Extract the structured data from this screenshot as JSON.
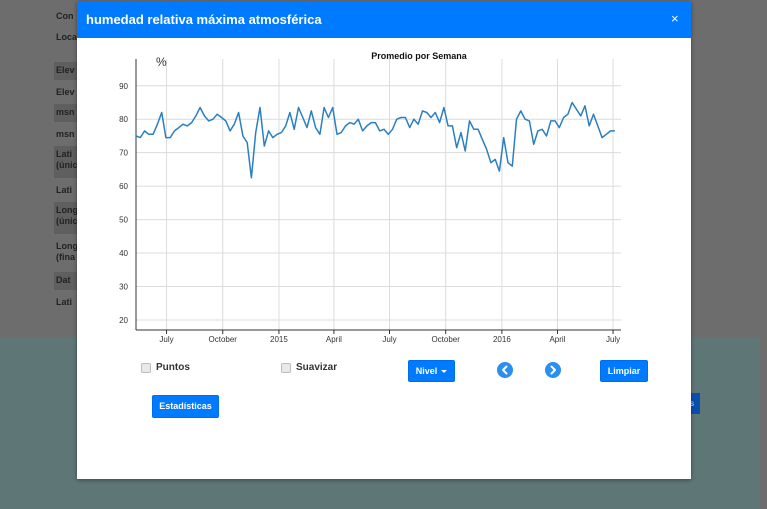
{
  "background": {
    "rows": [
      "Con",
      "Loca",
      "Elev",
      "Elev",
      "msn",
      "msn",
      "Lati (únic",
      "Lati",
      "Long (únic",
      "Long (fina",
      "Dat",
      "Lati"
    ],
    "button_text": "s"
  },
  "modal": {
    "title": "humedad relativa máxima atmosférica",
    "close": "×"
  },
  "controls": {
    "puntos": "Puntos",
    "suavizar": "Suavizar",
    "nivel": "Nivel",
    "limpiar": "Limpiar",
    "estadisticas": "Estadísticas"
  },
  "chart_data": {
    "type": "line",
    "title": "Promedio por Semana",
    "ylabel": "%",
    "ylim": [
      17,
      98
    ],
    "yticks": [
      20,
      30,
      40,
      50,
      60,
      70,
      80,
      90
    ],
    "grid": true,
    "color": "#2a7fc0",
    "xticks": [
      {
        "label": "July",
        "date": "2014-07-01"
      },
      {
        "label": "October",
        "date": "2014-10-01"
      },
      {
        "label": "2015",
        "date": "2015-01-01"
      },
      {
        "label": "April",
        "date": "2015-04-01"
      },
      {
        "label": "July",
        "date": "2015-07-01"
      },
      {
        "label": "October",
        "date": "2015-10-01"
      },
      {
        "label": "2016",
        "date": "2016-01-01"
      },
      {
        "label": "April",
        "date": "2016-04-01"
      },
      {
        "label": "July",
        "date": "2016-07-01"
      }
    ],
    "xrange": [
      "2014-05-12",
      "2016-07-14"
    ],
    "series": [
      {
        "points": [
          [
            "2014-05-12",
            75.0
          ],
          [
            "2014-05-19",
            74.5
          ],
          [
            "2014-05-26",
            76.5
          ],
          [
            "2014-06-02",
            75.5
          ],
          [
            "2014-06-09",
            75.5
          ],
          [
            "2014-06-16",
            78.5
          ],
          [
            "2014-06-23",
            82.0
          ],
          [
            "2014-06-30",
            74.5
          ],
          [
            "2014-07-07",
            74.5
          ],
          [
            "2014-07-14",
            76.5
          ],
          [
            "2014-07-21",
            77.5
          ],
          [
            "2014-07-28",
            78.5
          ],
          [
            "2014-08-04",
            78.0
          ],
          [
            "2014-08-11",
            79.0
          ],
          [
            "2014-08-18",
            81.0
          ],
          [
            "2014-08-25",
            83.5
          ],
          [
            "2014-09-01",
            81.0
          ],
          [
            "2014-09-08",
            79.5
          ],
          [
            "2014-09-15",
            80.0
          ],
          [
            "2014-09-22",
            81.5
          ],
          [
            "2014-09-29",
            80.5
          ],
          [
            "2014-10-06",
            79.5
          ],
          [
            "2014-10-13",
            76.5
          ],
          [
            "2014-10-20",
            78.5
          ],
          [
            "2014-10-27",
            82.0
          ],
          [
            "2014-11-03",
            75.0
          ],
          [
            "2014-11-10",
            73.0
          ],
          [
            "2014-11-17",
            62.5
          ],
          [
            "2014-11-24",
            76.0
          ],
          [
            "2014-12-01",
            83.5
          ],
          [
            "2014-12-08",
            72.0
          ],
          [
            "2014-12-15",
            76.5
          ],
          [
            "2014-12-22",
            74.5
          ],
          [
            "2014-12-29",
            75.5
          ],
          [
            "2015-01-05",
            76.0
          ],
          [
            "2015-01-12",
            78.0
          ],
          [
            "2015-01-19",
            82.0
          ],
          [
            "2015-01-26",
            77.0
          ],
          [
            "2015-02-02",
            83.5
          ],
          [
            "2015-02-09",
            80.5
          ],
          [
            "2015-02-16",
            77.5
          ],
          [
            "2015-02-23",
            82.5
          ],
          [
            "2015-03-02",
            77.5
          ],
          [
            "2015-03-09",
            75.5
          ],
          [
            "2015-03-16",
            83.5
          ],
          [
            "2015-03-23",
            80.5
          ],
          [
            "2015-03-30",
            83.5
          ],
          [
            "2015-04-06",
            75.5
          ],
          [
            "2015-04-13",
            76.0
          ],
          [
            "2015-04-20",
            78.0
          ],
          [
            "2015-04-27",
            79.0
          ],
          [
            "2015-05-04",
            78.5
          ],
          [
            "2015-05-11",
            80.0
          ],
          [
            "2015-05-18",
            76.5
          ],
          [
            "2015-05-25",
            78.0
          ],
          [
            "2015-06-01",
            79.0
          ],
          [
            "2015-06-08",
            79.0
          ],
          [
            "2015-06-15",
            76.5
          ],
          [
            "2015-06-22",
            77.0
          ],
          [
            "2015-06-29",
            75.5
          ],
          [
            "2015-07-06",
            77.0
          ],
          [
            "2015-07-13",
            80.0
          ],
          [
            "2015-07-20",
            80.5
          ],
          [
            "2015-07-27",
            80.5
          ],
          [
            "2015-08-03",
            77.5
          ],
          [
            "2015-08-10",
            80.0
          ],
          [
            "2015-08-17",
            78.5
          ],
          [
            "2015-08-24",
            82.5
          ],
          [
            "2015-08-31",
            82.0
          ],
          [
            "2015-09-07",
            80.5
          ],
          [
            "2015-09-14",
            82.0
          ],
          [
            "2015-09-21",
            79.0
          ],
          [
            "2015-09-28",
            83.5
          ],
          [
            "2015-10-05",
            78.0
          ],
          [
            "2015-10-12",
            78.0
          ],
          [
            "2015-10-19",
            71.5
          ],
          [
            "2015-10-26",
            76.0
          ],
          [
            "2015-11-02",
            70.5
          ],
          [
            "2015-11-09",
            79.5
          ],
          [
            "2015-11-16",
            77.0
          ],
          [
            "2015-11-23",
            77.0
          ],
          [
            "2015-11-30",
            74.0
          ],
          [
            "2015-12-07",
            71.0
          ],
          [
            "2015-12-14",
            67.0
          ],
          [
            "2015-12-21",
            68.0
          ],
          [
            "2015-12-28",
            64.5
          ],
          [
            "2016-01-04",
            74.5
          ],
          [
            "2016-01-11",
            67.0
          ],
          [
            "2016-01-18",
            66.0
          ],
          [
            "2016-01-25",
            80.0
          ],
          [
            "2016-02-01",
            82.5
          ],
          [
            "2016-02-08",
            80.0
          ],
          [
            "2016-02-15",
            79.5
          ],
          [
            "2016-02-22",
            72.5
          ],
          [
            "2016-02-29",
            76.5
          ],
          [
            "2016-03-07",
            77.0
          ],
          [
            "2016-03-14",
            75.0
          ],
          [
            "2016-03-21",
            79.5
          ],
          [
            "2016-03-28",
            79.5
          ],
          [
            "2016-04-04",
            77.5
          ],
          [
            "2016-04-11",
            80.5
          ],
          [
            "2016-04-18",
            81.5
          ],
          [
            "2016-04-25",
            85.0
          ],
          [
            "2016-05-02",
            83.0
          ],
          [
            "2016-05-09",
            81.0
          ],
          [
            "2016-05-16",
            84.0
          ],
          [
            "2016-05-23",
            78.0
          ],
          [
            "2016-05-30",
            81.5
          ],
          [
            "2016-06-06",
            78.0
          ],
          [
            "2016-06-13",
            74.5
          ],
          [
            "2016-06-20",
            75.5
          ],
          [
            "2016-06-27",
            76.5
          ],
          [
            "2016-07-04",
            76.5
          ]
        ]
      }
    ]
  }
}
